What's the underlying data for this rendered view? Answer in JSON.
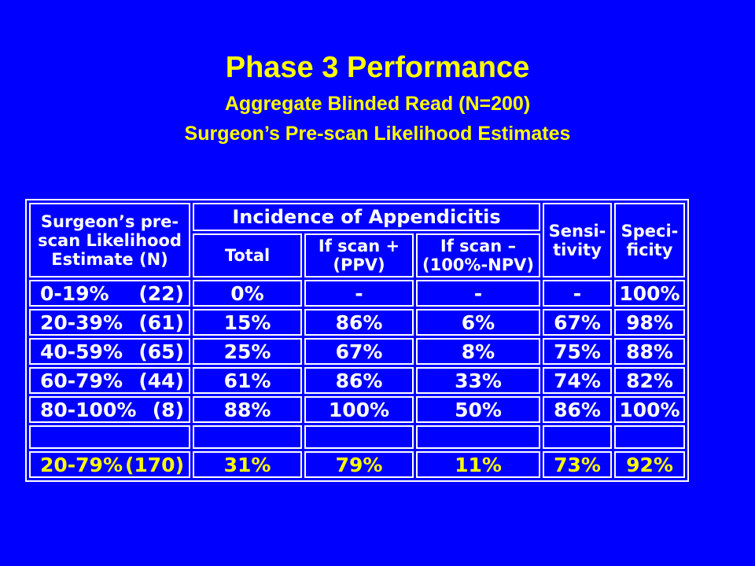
{
  "slide": {
    "title": "Phase 3  Performance",
    "subtitle1": "Aggregate Blinded Read (N=200)",
    "subtitle2": "Surgeon’s Pre-scan Likelihood Estimates"
  },
  "table": {
    "header": {
      "estimate": [
        "Surgeon’s pre-",
        "scan Likelihood",
        "Estimate (N)"
      ],
      "incidence": "Incidence of Appendicitis",
      "total": "Total",
      "scan_pos": [
        "If scan +",
        "(PPV)"
      ],
      "scan_neg": [
        "If scan –",
        "(100%-NPV)"
      ],
      "sensitivity": [
        "Sensi-",
        "tivity"
      ],
      "specificity": [
        "Speci-",
        "ficity"
      ]
    },
    "rows": [
      {
        "range": "0-19%",
        "n": "(22)",
        "total": "0%",
        "ppv": "-",
        "npv": "-",
        "sens": "-",
        "spec": "100%"
      },
      {
        "range": "20-39%",
        "n": "(61)",
        "total": "15%",
        "ppv": "86%",
        "npv": "6%",
        "sens": "67%",
        "spec": "98%"
      },
      {
        "range": "40-59%",
        "n": "(65)",
        "total": "25%",
        "ppv": "67%",
        "npv": "8%",
        "sens": "75%",
        "spec": "88%"
      },
      {
        "range": "60-79%",
        "n": "(44)",
        "total": "61%",
        "ppv": "86%",
        "npv": "33%",
        "sens": "74%",
        "spec": "82%"
      },
      {
        "range": "80-100%",
        "n": "(8)",
        "total": "88%",
        "ppv": "100%",
        "npv": "50%",
        "sens": "86%",
        "spec": "100%"
      }
    ],
    "summary": {
      "range": "20-79%",
      "n": "(170)",
      "total": "31%",
      "ppv": "79%",
      "npv": "11%",
      "sens": "73%",
      "spec": "92%"
    }
  },
  "colors": {
    "background": "#0000ff",
    "title": "#ffff00",
    "table_text": "#ffffff",
    "summary_text": "#ffff00"
  }
}
